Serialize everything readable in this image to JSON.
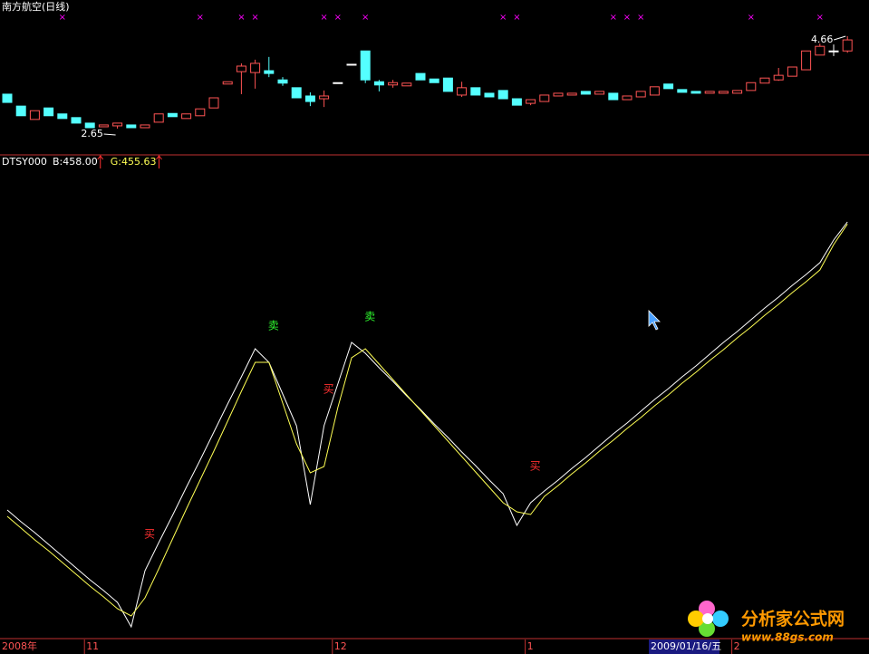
{
  "chart_data": [
    {
      "type": "candlestick",
      "title": "南方航空(日线)",
      "open": [
        3.4,
        3.14,
        2.85,
        3.1,
        2.97,
        2.89,
        2.77,
        2.69,
        2.71,
        2.73,
        2.67,
        2.79,
        2.98,
        2.87,
        2.93,
        3.1,
        3.62,
        3.89,
        3.87,
        3.91,
        3.71,
        3.54,
        3.36,
        3.3,
        3.65,
        4.05,
        4.34,
        3.67,
        3.6,
        3.58,
        3.85,
        3.73,
        3.75,
        3.38,
        3.54,
        3.42,
        3.48,
        3.3,
        3.2,
        3.24,
        3.36,
        3.38,
        3.46,
        3.4,
        3.42,
        3.28,
        3.34,
        3.38,
        3.62,
        3.5,
        3.46,
        3.42,
        3.42,
        3.42,
        3.48,
        3.64,
        3.71,
        3.79,
        3.93,
        4.25,
        4.32,
        4.34
      ],
      "high": [
        3.4,
        3.14,
        3.04,
        3.1,
        2.97,
        2.89,
        2.77,
        2.73,
        2.77,
        2.73,
        2.73,
        2.97,
        2.98,
        2.97,
        3.08,
        3.32,
        3.67,
        4.07,
        4.15,
        4.21,
        3.77,
        3.54,
        3.44,
        3.48,
        3.65,
        4.05,
        4.34,
        3.71,
        3.71,
        3.64,
        3.85,
        3.73,
        3.75,
        3.67,
        3.54,
        3.42,
        3.48,
        3.3,
        3.28,
        3.38,
        3.42,
        3.42,
        3.46,
        3.46,
        3.42,
        3.36,
        3.46,
        3.56,
        3.62,
        3.5,
        3.46,
        3.46,
        3.46,
        3.48,
        3.65,
        3.75,
        3.97,
        3.99,
        4.34,
        4.5,
        4.48,
        4.66
      ],
      "low": [
        3.22,
        2.93,
        2.85,
        2.93,
        2.87,
        2.77,
        2.67,
        2.69,
        2.65,
        2.67,
        2.67,
        2.79,
        2.91,
        2.87,
        2.93,
        3.1,
        3.62,
        3.4,
        3.52,
        3.77,
        3.58,
        3.32,
        3.14,
        3.12,
        3.65,
        4.05,
        3.64,
        3.46,
        3.54,
        3.58,
        3.71,
        3.65,
        3.46,
        3.34,
        3.38,
        3.34,
        3.3,
        3.16,
        3.16,
        3.24,
        3.36,
        3.38,
        3.4,
        3.4,
        3.28,
        3.28,
        3.34,
        3.38,
        3.52,
        3.44,
        3.42,
        3.42,
        3.42,
        3.42,
        3.48,
        3.64,
        3.69,
        3.79,
        3.93,
        4.25,
        4.23,
        4.3
      ],
      "close": [
        3.22,
        2.93,
        3.04,
        2.93,
        2.87,
        2.77,
        2.67,
        2.73,
        2.77,
        2.67,
        2.73,
        2.97,
        2.91,
        2.97,
        3.08,
        3.32,
        3.67,
        4.01,
        4.07,
        3.85,
        3.64,
        3.32,
        3.24,
        3.36,
        3.65,
        4.05,
        3.71,
        3.6,
        3.65,
        3.64,
        3.71,
        3.65,
        3.46,
        3.54,
        3.38,
        3.34,
        3.3,
        3.16,
        3.28,
        3.38,
        3.42,
        3.42,
        3.4,
        3.46,
        3.28,
        3.36,
        3.46,
        3.56,
        3.52,
        3.44,
        3.42,
        3.46,
        3.46,
        3.48,
        3.65,
        3.75,
        3.81,
        3.99,
        4.34,
        4.44,
        4.34,
        4.58
      ],
      "up_color": "#ff5454",
      "down_color": "#54ffff",
      "flat_color": "#ffffff",
      "annotations": [
        {
          "text": "2.65",
          "index": 8
        },
        {
          "text": "4.66",
          "index": 61
        }
      ],
      "marker_text": "×",
      "marker_color": "#ff00ff",
      "marker_indices": [
        4,
        14,
        17,
        18,
        23,
        24,
        26,
        36,
        37,
        44,
        45,
        46,
        54,
        59
      ]
    },
    {
      "type": "line",
      "title": "DTSY000",
      "categories": [
        "2008年",
        null,
        null,
        null,
        null,
        null,
        "11",
        null,
        null,
        null,
        null,
        null,
        null,
        null,
        null,
        null,
        null,
        null,
        null,
        null,
        null,
        null,
        null,
        null,
        "12",
        null,
        null,
        null,
        null,
        null,
        null,
        null,
        null,
        null,
        null,
        null,
        null,
        null,
        "1",
        null,
        null,
        null,
        null,
        null,
        null,
        null,
        null,
        null,
        null,
        null,
        null,
        null,
        null,
        "2",
        null,
        null,
        null,
        null,
        null,
        null,
        null,
        null
      ],
      "cursor_label": "2009/01/16/五",
      "series": [
        {
          "name": "B:458.00",
          "color": "#ffffff",
          "values": [
            132.17,
            118.85,
            106.56,
            93.24,
            79.92,
            66.6,
            53.28,
            40.98,
            27.66,
            0,
            63.53,
            95.29,
            126.03,
            157.79,
            188.53,
            220.29,
            252.05,
            282.79,
            314.55,
            299.18,
            263.32,
            227.46,
            138.32,
            227.46,
            274.59,
            321.72,
            309.43,
            293.04,
            277.67,
            261.27,
            245.9,
            229.51,
            214.14,
            197.75,
            182.38,
            165.99,
            150.62,
            114.76,
            140.37,
            153.69,
            165.99,
            179.31,
            191.6,
            204.92,
            218.24,
            230.54,
            243.85,
            257.17,
            269.47,
            282.79,
            295.08,
            308.4,
            321.72,
            334.02,
            347.34,
            360.66,
            372.95,
            386.27,
            398.57,
            411.89,
            437.5,
            458.0
          ]
        },
        {
          "name": "G:455.63",
          "color": "#ffff54",
          "values": [
            125.0,
            111.68,
            98.36,
            86.07,
            72.75,
            59.43,
            46.11,
            33.81,
            20.49,
            12.3,
            32.79,
            65.57,
            99.39,
            133.2,
            165.99,
            198.77,
            232.58,
            266.4,
            299.18,
            299.18,
            253.08,
            206.97,
            174.18,
            181.35,
            247.95,
            304.31,
            314.55,
            297.13,
            279.72,
            262.3,
            244.88,
            227.46,
            210.04,
            192.62,
            175.21,
            157.79,
            140.37,
            130.12,
            127.05,
            147.54,
            159.84,
            173.16,
            185.45,
            198.77,
            211.07,
            224.39,
            236.68,
            250.0,
            262.3,
            275.62,
            287.91,
            301.23,
            313.53,
            326.85,
            339.14,
            352.46,
            364.76,
            378.08,
            390.37,
            403.69,
            432.38,
            455.63
          ]
        }
      ],
      "signals": [
        {
          "label": "买",
          "index": 10,
          "color": "#ff3030"
        },
        {
          "label": "卖",
          "index": 19,
          "color": "#30ff30"
        },
        {
          "label": "买",
          "index": 23,
          "color": "#ff3030"
        },
        {
          "label": "卖",
          "index": 26,
          "color": "#30ff30"
        },
        {
          "label": "买",
          "index": 38,
          "color": "#ff3030"
        }
      ]
    }
  ],
  "watermark": {
    "title": "分析家公式网",
    "url": "www.88gs.com"
  }
}
